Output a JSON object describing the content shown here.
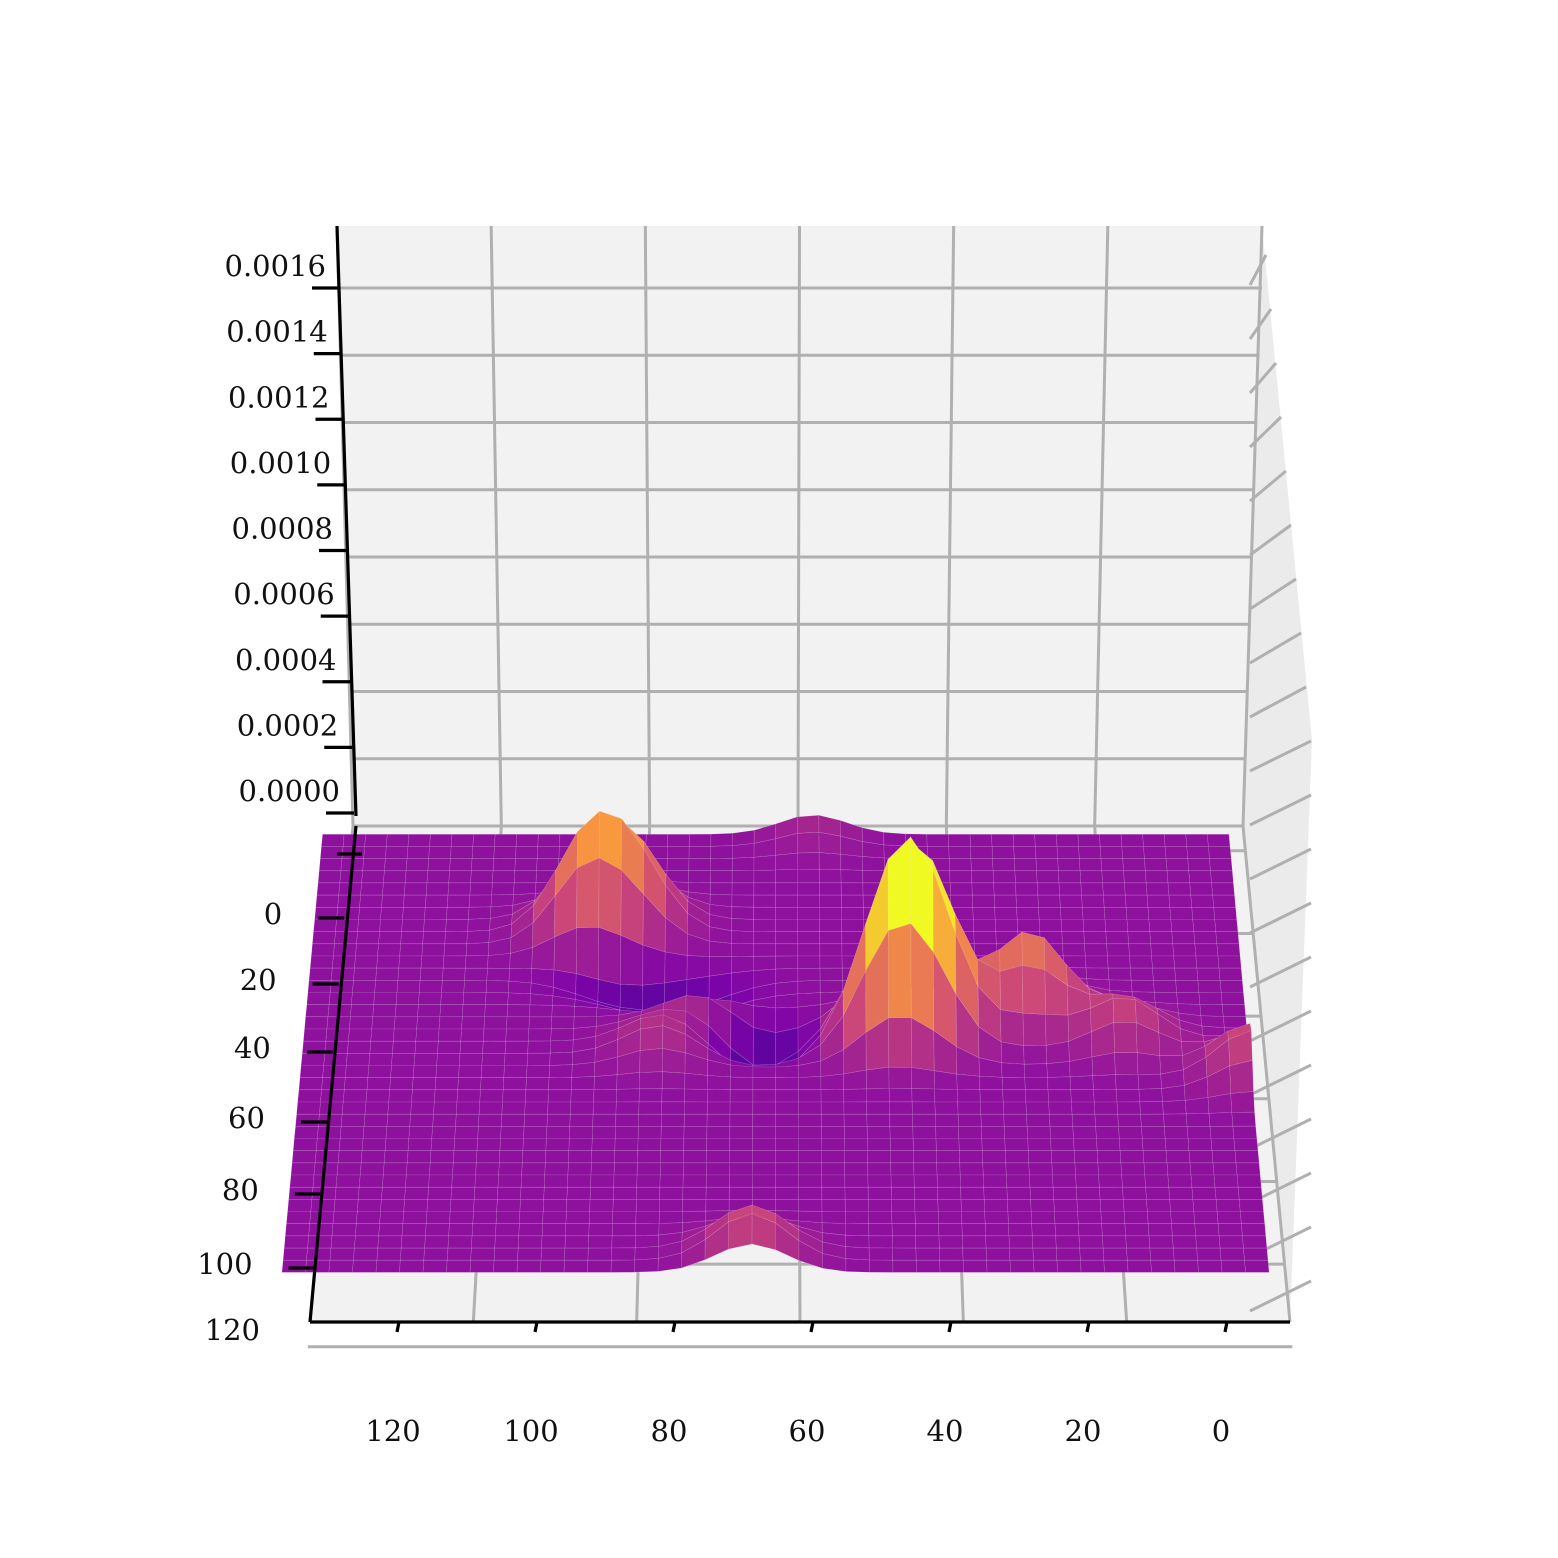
{
  "chart_data": {
    "type": "surface3d",
    "title": "",
    "xlabel": "",
    "ylabel": "",
    "zlabel": "",
    "colormap": "plasma",
    "x_ticks": [
      "120",
      "100",
      "80",
      "60",
      "40",
      "20",
      "0"
    ],
    "y_ticks": [
      "0",
      "20",
      "40",
      "60",
      "80",
      "100",
      "120"
    ],
    "z_ticks": [
      "0.0000",
      "0.0002",
      "0.0004",
      "0.0006",
      "0.0008",
      "0.0010",
      "0.0012",
      "0.0014",
      "0.0016"
    ],
    "xlim": [
      0,
      120
    ],
    "ylim": [
      0,
      120
    ],
    "zlim": [
      0,
      0.0016
    ],
    "grid": true,
    "colors": {
      "pane": "#f2f2f2",
      "grid": "#b0b0b0",
      "surface_base": "#8808a6",
      "surface_peak": "#f9e62d"
    },
    "peaks": [
      {
        "x": 48,
        "y": 52,
        "z": 0.00055
      },
      {
        "x": 43,
        "y": 50,
        "z": 0.0005
      },
      {
        "x": 30,
        "y": 46,
        "z": 0.00035
      },
      {
        "x": 88,
        "y": 26,
        "z": 0.00035
      },
      {
        "x": 82,
        "y": 24,
        "z": 0.0003
      },
      {
        "x": 72,
        "y": 46,
        "z": 0.00015
      },
      {
        "x": 78,
        "y": 54,
        "z": 0.00012
      },
      {
        "x": 66,
        "y": 104,
        "z": 0.0002
      },
      {
        "x": 2,
        "y": 60,
        "z": 0.0002
      },
      {
        "x": 18,
        "y": 52,
        "z": 0.00018
      },
      {
        "x": 58,
        "y": 2,
        "z": 8e-05
      }
    ],
    "troughs": [
      {
        "x": 66,
        "y": 50,
        "z": -0.0002
      },
      {
        "x": 74,
        "y": 40,
        "z": -0.00015
      },
      {
        "x": 84,
        "y": 36,
        "z": -0.0001
      }
    ]
  }
}
